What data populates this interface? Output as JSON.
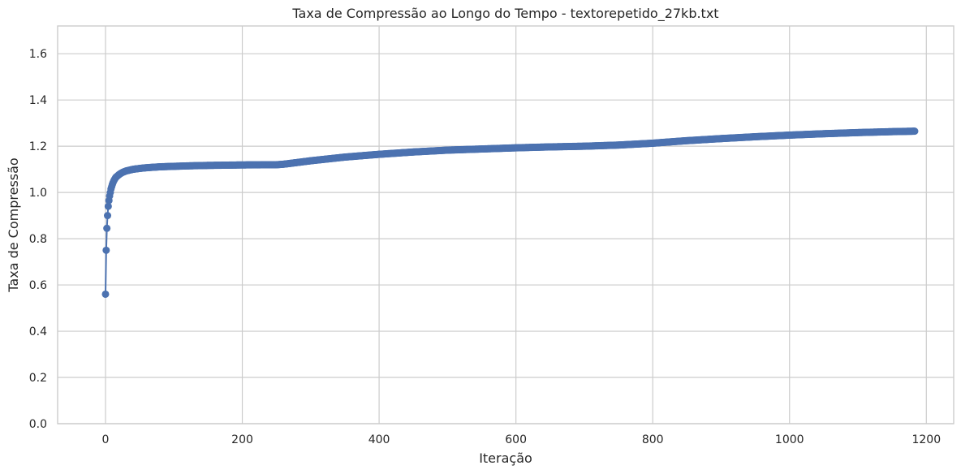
{
  "chart_data": {
    "type": "line",
    "title": "Taxa de Compressão ao Longo do Tempo - textorepetido_27kb.txt",
    "xlabel": "Iteração",
    "ylabel": "Taxa de Compressão",
    "xlim": [
      -70,
      1240
    ],
    "ylim": [
      0.0,
      1.72
    ],
    "xticks": [
      0,
      200,
      400,
      600,
      800,
      1000,
      1200
    ],
    "xtick_labels": [
      "0",
      "200",
      "400",
      "600",
      "800",
      "1000",
      "1200"
    ],
    "yticks": [
      0.0,
      0.2,
      0.4,
      0.6,
      0.8,
      1.0,
      1.2,
      1.4,
      1.6
    ],
    "ytick_labels": [
      "0.0",
      "0.2",
      "0.4",
      "0.6",
      "0.8",
      "1.0",
      "1.2",
      "1.4",
      "1.6"
    ],
    "grid": true,
    "marker": "circle",
    "color": "#4c72b0",
    "series": [
      {
        "x": [
          0,
          1,
          2,
          3,
          4,
          5,
          6,
          7,
          8,
          10,
          12,
          15,
          20,
          25,
          30,
          40,
          50,
          60,
          80,
          100,
          120,
          150,
          200,
          250,
          260,
          300,
          350,
          400,
          450,
          500,
          550,
          600,
          650,
          700,
          750,
          800,
          850,
          900,
          950,
          1000,
          1050,
          1100,
          1150,
          1183
        ],
        "y": [
          0.56,
          0.75,
          0.845,
          0.9,
          0.94,
          0.965,
          0.985,
          1.0,
          1.015,
          1.035,
          1.05,
          1.065,
          1.078,
          1.087,
          1.093,
          1.1,
          1.104,
          1.107,
          1.111,
          1.113,
          1.115,
          1.117,
          1.119,
          1.12,
          1.122,
          1.137,
          1.153,
          1.165,
          1.175,
          1.183,
          1.188,
          1.193,
          1.197,
          1.2,
          1.205,
          1.213,
          1.224,
          1.233,
          1.241,
          1.248,
          1.254,
          1.259,
          1.263,
          1.265
        ]
      }
    ]
  }
}
